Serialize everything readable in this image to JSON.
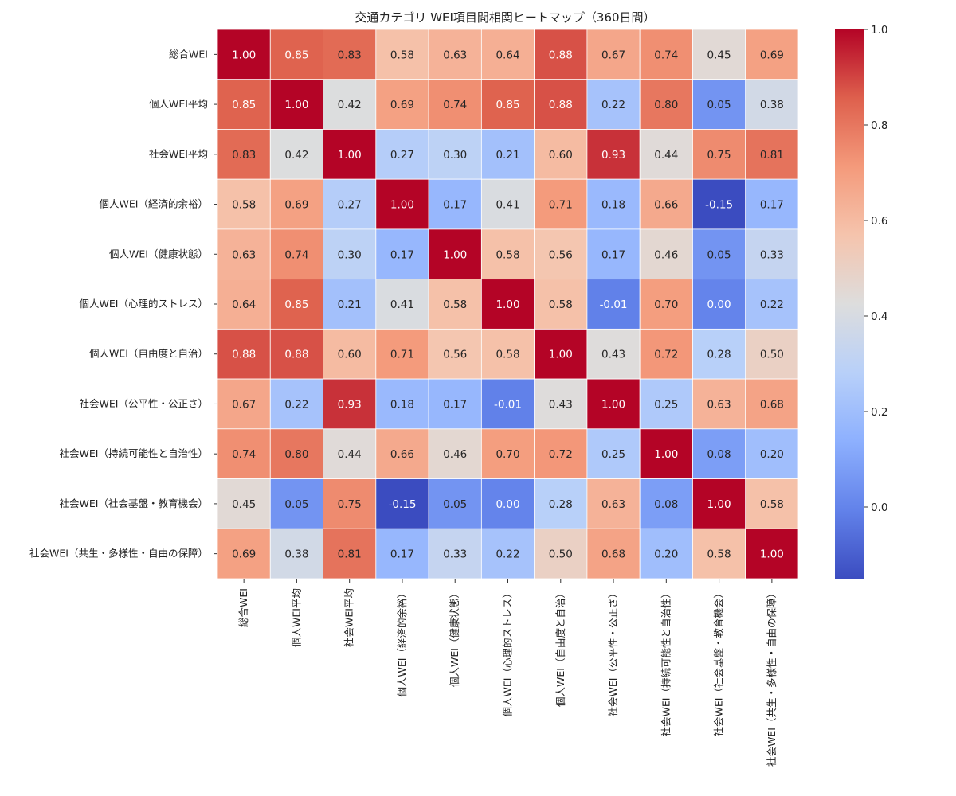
{
  "chart_data": {
    "type": "heatmap",
    "title": "交通カテゴリ WEI項目間相関ヒートマップ（360日間）",
    "labels": [
      "総合WEI",
      "個人WEI平均",
      "社会WEI平均",
      "個人WEI（経済的余裕）",
      "個人WEI（健康状態）",
      "個人WEI（心理的ストレス）",
      "個人WEI（自由度と自治）",
      "社会WEI（公平性・公正さ）",
      "社会WEI（持続可能性と自治性）",
      "社会WEI（社会基盤・教育機会）",
      "社会WEI（共生・多様性・自由の保障）"
    ],
    "matrix": [
      [
        1.0,
        0.85,
        0.83,
        0.58,
        0.63,
        0.64,
        0.88,
        0.67,
        0.74,
        0.45,
        0.69
      ],
      [
        0.85,
        1.0,
        0.42,
        0.69,
        0.74,
        0.85,
        0.88,
        0.22,
        0.8,
        0.05,
        0.38
      ],
      [
        0.83,
        0.42,
        1.0,
        0.27,
        0.3,
        0.21,
        0.6,
        0.93,
        0.44,
        0.75,
        0.81
      ],
      [
        0.58,
        0.69,
        0.27,
        1.0,
        0.17,
        0.41,
        0.71,
        0.18,
        0.66,
        -0.15,
        0.17
      ],
      [
        0.63,
        0.74,
        0.3,
        0.17,
        1.0,
        0.58,
        0.56,
        0.17,
        0.46,
        0.05,
        0.33
      ],
      [
        0.64,
        0.85,
        0.21,
        0.41,
        0.58,
        1.0,
        0.58,
        -0.01,
        0.7,
        -0.0,
        0.22
      ],
      [
        0.88,
        0.88,
        0.6,
        0.71,
        0.56,
        0.58,
        1.0,
        0.43,
        0.72,
        0.28,
        0.5
      ],
      [
        0.67,
        0.22,
        0.93,
        0.18,
        0.17,
        -0.01,
        0.43,
        1.0,
        0.25,
        0.63,
        0.68
      ],
      [
        0.74,
        0.8,
        0.44,
        0.66,
        0.46,
        0.7,
        0.72,
        0.25,
        1.0,
        0.08,
        0.2
      ],
      [
        0.45,
        0.05,
        0.75,
        -0.15,
        0.05,
        -0.0,
        0.28,
        0.63,
        0.08,
        1.0,
        0.58
      ],
      [
        0.69,
        0.38,
        0.81,
        0.17,
        0.33,
        0.22,
        0.5,
        0.68,
        0.2,
        0.58,
        1.0
      ]
    ],
    "value_format": "0.00",
    "colormap": "coolwarm",
    "vmin": -0.15,
    "vmax": 1.0,
    "colorbar_ticks": [
      0.0,
      0.2,
      0.4,
      0.6,
      0.8,
      1.0
    ],
    "colorbar_tick_labels": [
      "0.0",
      "0.2",
      "0.4",
      "0.6",
      "0.8",
      "1.0"
    ],
    "legend": "colorbar-right"
  }
}
